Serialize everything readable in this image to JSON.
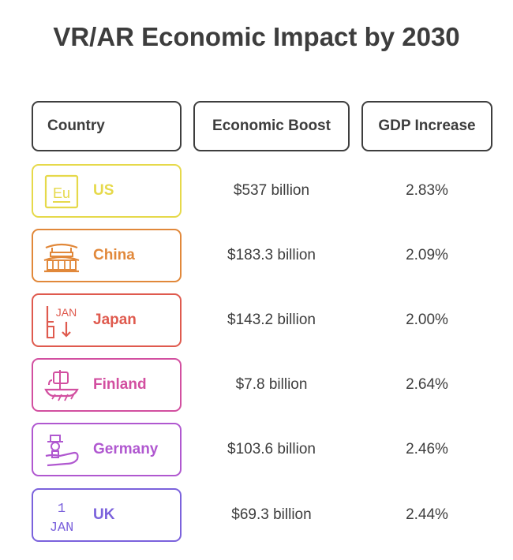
{
  "chart_data": {
    "type": "table",
    "title": "VR/AR Economic Impact by 2030",
    "columns": [
      "Country",
      "Economic Boost",
      "GDP Increase"
    ],
    "rows": [
      {
        "country": "US",
        "boost": "$537 billion",
        "gdp": "2.83%",
        "boost_value": 537,
        "gdp_value": 2.83,
        "color": "#e6d94a",
        "icon": "eu-flag-icon"
      },
      {
        "country": "China",
        "boost": "$183.3 billion",
        "gdp": "2.09%",
        "boost_value": 183.3,
        "gdp_value": 2.09,
        "color": "#e1883a",
        "icon": "temple-icon"
      },
      {
        "country": "Japan",
        "boost": "$143.2 billion",
        "gdp": "2.00%",
        "boost_value": 143.2,
        "gdp_value": 2.0,
        "color": "#df5a4e",
        "icon": "calendar-jan-icon"
      },
      {
        "country": "Finland",
        "boost": "$7.8 billion",
        "gdp": "2.64%",
        "boost_value": 7.8,
        "gdp_value": 2.64,
        "color": "#d24fa0",
        "icon": "viking-ship-icon"
      },
      {
        "country": "Germany",
        "boost": "$103.6 billion",
        "gdp": "2.46%",
        "boost_value": 103.6,
        "gdp_value": 2.46,
        "color": "#b058d0",
        "icon": "hand-figure-icon"
      },
      {
        "country": "UK",
        "boost": "$69.3 billion",
        "gdp": "2.44%",
        "boost_value": 69.3,
        "gdp_value": 2.44,
        "color": "#7b62dc",
        "icon": "calendar-1-jan-icon"
      }
    ]
  },
  "icon_text": {
    "eu": "Eu",
    "jan": "JAN",
    "one": "1"
  }
}
